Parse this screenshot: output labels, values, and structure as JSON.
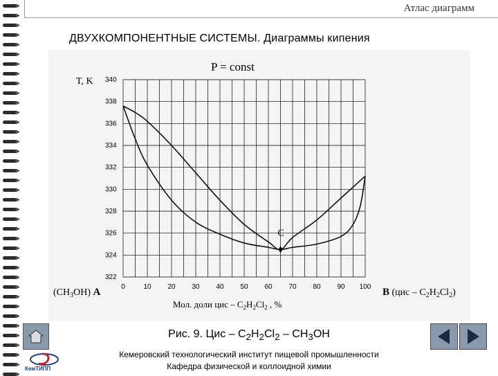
{
  "header": {
    "atlas_title": "Атлас диаграмм"
  },
  "section_title": "ДВУХКОМПОНЕНТНЫЕ СИСТЕМЫ.  Диаграммы кипения",
  "caption": {
    "prefix": "Рис. 9. Цис – C",
    "sub1": "2",
    "mid1": "H",
    "sub2": "2",
    "mid2": "Cl",
    "sub3": "2",
    "suffix": " – CH",
    "sub4": "3",
    "end": "OH"
  },
  "institute": {
    "line1": "Кемеровский технологический институт пищевой промышленности",
    "line2": "Кафедра физической и коллоидной химии"
  },
  "logo_text": "КемТИПП",
  "icons": {
    "home": "home-icon",
    "back": "prev-arrow-icon",
    "next": "next-arrow-icon"
  },
  "colors": {
    "curve": "#111111",
    "grid": "#000000",
    "panel": "#f4f4f4",
    "nav": "#8a9aaa"
  },
  "chart_data": {
    "type": "line",
    "pressure_label": "P = const",
    "ylabel": "T, K",
    "xlabel_prefix": "Мол. доли цис – C",
    "xlabel_sub1": "2",
    "xlabel_mid1": "H",
    "xlabel_sub2": "2",
    "xlabel_mid2": "Cl",
    "xlabel_sub3": "2",
    "xlabel_suffix": " , %",
    "left_component": "(CH3OH) A",
    "right_component": "B (цис – C2H2Cl2)",
    "point_label": "C",
    "xlim": [
      0,
      100
    ],
    "ylim": [
      322,
      340
    ],
    "x_ticks": [
      "0",
      "10",
      "20",
      "30",
      "40",
      "50",
      "60",
      "70",
      "80",
      "90",
      "100"
    ],
    "y_ticks": [
      "322",
      "324",
      "326",
      "328",
      "330",
      "332",
      "334",
      "336",
      "338",
      "340"
    ],
    "grid": true,
    "azeotrope": {
      "x": 65,
      "y": 324.5
    },
    "series": [
      {
        "points": [
          [
            0,
            337.6
          ],
          [
            5,
            337
          ],
          [
            10,
            336.2
          ],
          [
            20,
            334
          ],
          [
            30,
            331.5
          ],
          [
            40,
            329
          ],
          [
            50,
            326.8
          ],
          [
            60,
            325.2
          ],
          [
            65,
            324.5
          ],
          [
            70,
            325.6
          ],
          [
            80,
            327.2
          ],
          [
            90,
            329.2
          ],
          [
            100,
            331.2
          ]
        ]
      },
      {
        "points": [
          [
            0,
            337.6
          ],
          [
            5,
            334.6
          ],
          [
            10,
            332.2
          ],
          [
            20,
            329
          ],
          [
            30,
            327
          ],
          [
            40,
            325.9
          ],
          [
            50,
            325.1
          ],
          [
            60,
            324.7
          ],
          [
            65,
            324.5
          ],
          [
            70,
            324.7
          ],
          [
            80,
            325
          ],
          [
            90,
            325.7
          ],
          [
            95,
            326.8
          ],
          [
            98,
            328.5
          ],
          [
            100,
            331.2
          ]
        ]
      }
    ]
  }
}
